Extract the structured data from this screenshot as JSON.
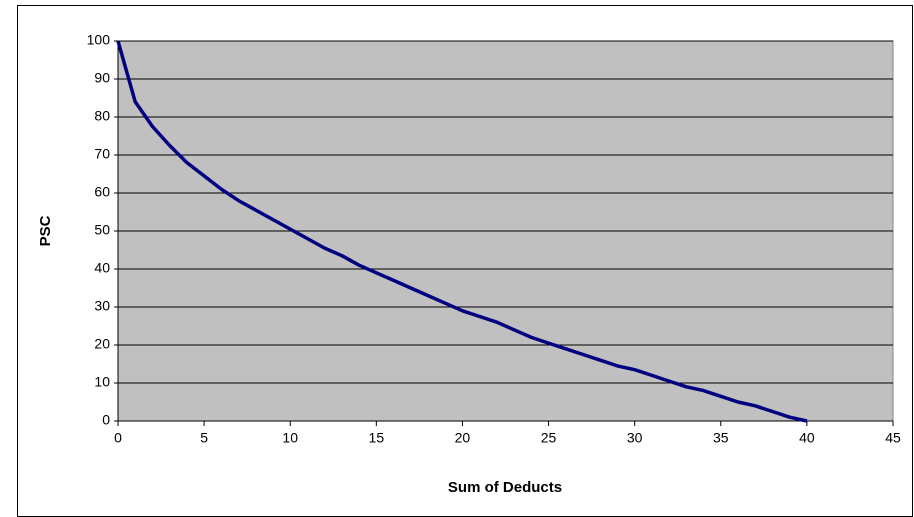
{
  "chart_data": {
    "type": "line",
    "x_label": "Sum of Deducts",
    "y_label": "PSC",
    "x": [
      0,
      1,
      2,
      3,
      4,
      5,
      6,
      7,
      8,
      9,
      10,
      11,
      12,
      13,
      14,
      15,
      16,
      17,
      18,
      19,
      20,
      21,
      22,
      23,
      24,
      25,
      26,
      27,
      28,
      29,
      30,
      31,
      32,
      33,
      34,
      35,
      36,
      37,
      38,
      39,
      40
    ],
    "series": [
      {
        "color": "#000080",
        "values": [
          100,
          84,
          77.5,
          72.5,
          68,
          64.5,
          61,
          58,
          55.5,
          53,
          50.5,
          48,
          45.5,
          43.5,
          41,
          39,
          37,
          35,
          33,
          31,
          29,
          27.5,
          26,
          24,
          22,
          20.5,
          19,
          17.5,
          16,
          14.5,
          13.5,
          12,
          10.5,
          9,
          8,
          6.5,
          5,
          4,
          2.5,
          1,
          0
        ]
      }
    ],
    "xlim": [
      0,
      45
    ],
    "xticks": [
      0,
      5,
      10,
      15,
      20,
      25,
      30,
      35,
      40,
      45
    ],
    "ylim": [
      0,
      100
    ],
    "yticks": [
      0,
      10,
      20,
      30,
      40,
      50,
      60,
      70,
      80,
      90,
      100
    ],
    "grid": true,
    "plot_background": "#c0c0c0"
  }
}
